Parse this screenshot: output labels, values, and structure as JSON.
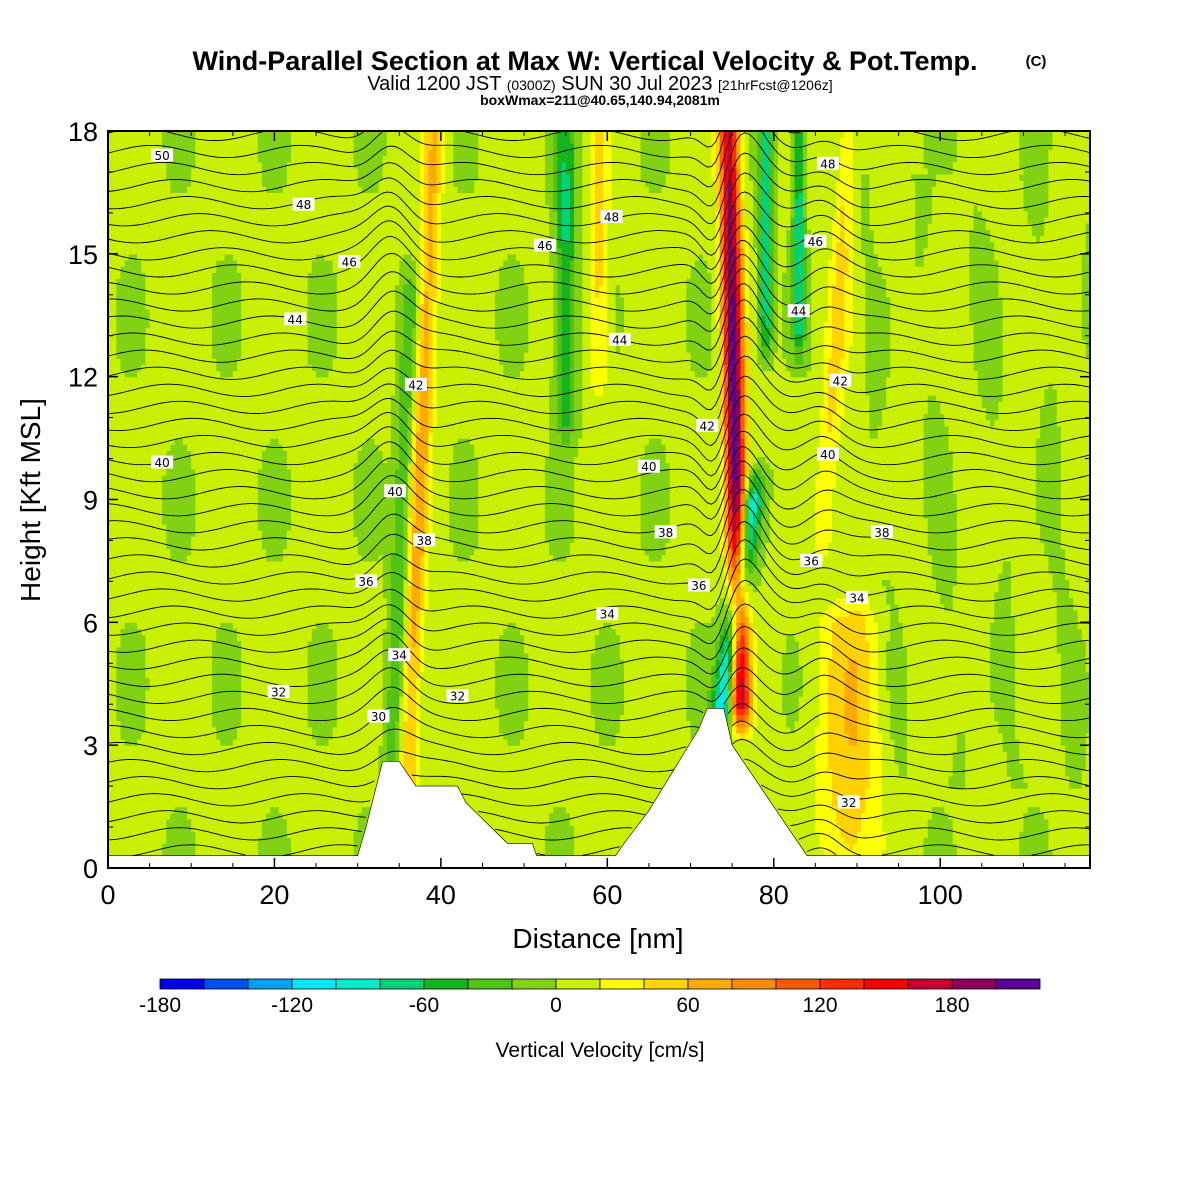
{
  "chart_data": {
    "type": "heatmap",
    "title": "Wind-Parallel Section at Max W: Vertical Velocity & Pot.Temp.",
    "title_mark": "(C)",
    "subtitle_parts": {
      "valid": "Valid 1200 JST",
      "utc": "(0300Z)",
      "date": "SUN 30 Jul 2023",
      "forecast": "[21hrFcst@1206z]"
    },
    "subtitle2": "boxWmax=211@40.65,140.94,2081m",
    "xlabel": "Distance [nm]",
    "ylabel": "Height [Kft MSL]",
    "xlim": [
      0,
      118
    ],
    "ylim": [
      0,
      18
    ],
    "x_ticks": [
      0,
      20,
      40,
      60,
      80,
      100
    ],
    "y_ticks": [
      0,
      3,
      6,
      9,
      12,
      15,
      18
    ],
    "colorbar": {
      "label": "Vertical Velocity [cm/s]",
      "tick_values": [
        -180,
        -120,
        -60,
        0,
        60,
        120,
        180
      ],
      "levels": [
        -180,
        -160,
        -140,
        -120,
        -100,
        -80,
        -60,
        -40,
        -20,
        0,
        20,
        40,
        60,
        80,
        100,
        120,
        140,
        160,
        180,
        200
      ],
      "colors": [
        "#0000f0",
        "#0050f5",
        "#00a0f5",
        "#00e6ff",
        "#00ebc8",
        "#00d278",
        "#14b41e",
        "#50c314",
        "#82d214",
        "#c8f000",
        "#ffff00",
        "#ffd200",
        "#ffaa00",
        "#ff8c00",
        "#ff5a00",
        "#ff2d00",
        "#ff0000",
        "#c80032",
        "#8c005a",
        "#5a0096"
      ]
    },
    "terrain": [
      [
        0,
        0.3
      ],
      [
        30,
        0.3
      ],
      [
        31,
        1.0
      ],
      [
        32,
        1.8
      ],
      [
        33,
        2.6
      ],
      [
        35,
        2.6
      ],
      [
        36,
        2.3
      ],
      [
        37,
        2.0
      ],
      [
        42,
        2.0
      ],
      [
        43,
        1.6
      ],
      [
        46,
        1.0
      ],
      [
        48,
        0.6
      ],
      [
        51,
        0.6
      ],
      [
        51.5,
        0.3
      ],
      [
        61,
        0.3
      ],
      [
        62,
        0.6
      ],
      [
        65,
        1.4
      ],
      [
        68,
        2.4
      ],
      [
        71,
        3.4
      ],
      [
        72,
        3.9
      ],
      [
        74,
        3.9
      ],
      [
        75,
        3.0
      ],
      [
        77,
        2.4
      ],
      [
        81,
        1.2
      ],
      [
        84,
        0.3
      ],
      [
        118,
        0.3
      ]
    ],
    "w_features": [
      {
        "name": "main updraft",
        "x": 76,
        "zmin": 4,
        "zmax": 18,
        "width": 1.2,
        "peak": 211,
        "tilt": -0.1
      },
      {
        "name": "downdraft west of updraft",
        "x": 73.5,
        "zmin": 3.5,
        "zmax": 9,
        "width": 1.3,
        "peak": -130,
        "tilt": 0.7
      },
      {
        "name": "downdraft east upper",
        "x": 79,
        "zmin": 13,
        "zmax": 18,
        "width": 0.8,
        "peak": -90,
        "tilt": 0
      },
      {
        "name": "downdraft east upper 2",
        "x": 83,
        "zmin": 13,
        "zmax": 18,
        "width": 0.7,
        "peak": -80,
        "tilt": 0
      },
      {
        "name": "updraft band west",
        "x": 36,
        "zmin": 2,
        "zmax": 18,
        "width": 1.2,
        "peak": 70,
        "tilt": 0.2
      },
      {
        "name": "downdraft band west",
        "x": 34,
        "zmin": 2,
        "zmax": 14,
        "width": 1.1,
        "peak": -45,
        "tilt": 0.2
      },
      {
        "name": "downdraft band mid",
        "x": 55,
        "zmin": 11,
        "zmax": 18,
        "width": 1.2,
        "peak": -70,
        "tilt": 0
      },
      {
        "name": "updraft band mid",
        "x": 59,
        "zmin": 12,
        "zmax": 18,
        "width": 1.2,
        "peak": 45,
        "tilt": 0
      },
      {
        "name": "low-level updraft east",
        "x": 89,
        "zmin": 0.5,
        "zmax": 6,
        "width": 3.5,
        "peak": 55,
        "tilt": 0
      },
      {
        "name": "updraft east upper",
        "x": 86,
        "zmin": 8,
        "zmax": 18,
        "width": 1.3,
        "peak": 40,
        "tilt": 0.3
      }
    ],
    "isentropes": [
      {
        "theta": 30,
        "label": "30",
        "label_x": 32.5,
        "label_z": 3.7
      },
      {
        "theta": 32,
        "label": "32",
        "label_x": 20.5,
        "label_z": 4.3
      },
      {
        "theta": 32,
        "label": "32",
        "label_x": 42,
        "label_z": 4.2
      },
      {
        "theta": 32,
        "label": "32",
        "label_x": 89,
        "label_z": 1.6
      },
      {
        "theta": 34,
        "label": "34",
        "label_x": 35,
        "label_z": 5.2
      },
      {
        "theta": 34,
        "label": "34",
        "label_x": 60,
        "label_z": 6.2
      },
      {
        "theta": 34,
        "label": "34",
        "label_x": 90,
        "label_z": 6.6
      },
      {
        "theta": 36,
        "label": "36",
        "label_x": 31,
        "label_z": 7.0
      },
      {
        "theta": 36,
        "label": "36",
        "label_x": 71,
        "label_z": 6.9
      },
      {
        "theta": 36,
        "label": "36",
        "label_x": 84.5,
        "label_z": 7.5
      },
      {
        "theta": 38,
        "label": "38",
        "label_x": 38,
        "label_z": 8.0
      },
      {
        "theta": 38,
        "label": "38",
        "label_x": 67,
        "label_z": 8.2
      },
      {
        "theta": 38,
        "label": "38",
        "label_x": 93,
        "label_z": 8.2
      },
      {
        "theta": 40,
        "label": "40",
        "label_x": 6.5,
        "label_z": 9.9
      },
      {
        "theta": 40,
        "label": "40",
        "label_x": 34.5,
        "label_z": 9.2
      },
      {
        "theta": 40,
        "label": "40",
        "label_x": 65,
        "label_z": 9.8
      },
      {
        "theta": 40,
        "label": "40",
        "label_x": 86.5,
        "label_z": 10.1
      },
      {
        "theta": 42,
        "label": "42",
        "label_x": 37,
        "label_z": 11.8
      },
      {
        "theta": 42,
        "label": "42",
        "label_x": 72,
        "label_z": 10.8
      },
      {
        "theta": 42,
        "label": "42",
        "label_x": 88,
        "label_z": 11.9
      },
      {
        "theta": 44,
        "label": "44",
        "label_x": 22.5,
        "label_z": 13.4
      },
      {
        "theta": 44,
        "label": "44",
        "label_x": 61.5,
        "label_z": 12.9
      },
      {
        "theta": 44,
        "label": "44",
        "label_x": 83,
        "label_z": 13.6
      },
      {
        "theta": 46,
        "label": "46",
        "label_x": 29,
        "label_z": 14.8
      },
      {
        "theta": 46,
        "label": "46",
        "label_x": 52.5,
        "label_z": 15.2
      },
      {
        "theta": 46,
        "label": "46",
        "label_x": 85,
        "label_z": 15.3
      },
      {
        "theta": 48,
        "label": "48",
        "label_x": 23.5,
        "label_z": 16.2
      },
      {
        "theta": 48,
        "label": "48",
        "label_x": 60.5,
        "label_z": 15.9
      },
      {
        "theta": 48,
        "label": "48",
        "label_x": 86.5,
        "label_z": 17.2
      },
      {
        "theta": 50,
        "label": "50",
        "label_x": 6.5,
        "label_z": 17.4
      }
    ]
  }
}
